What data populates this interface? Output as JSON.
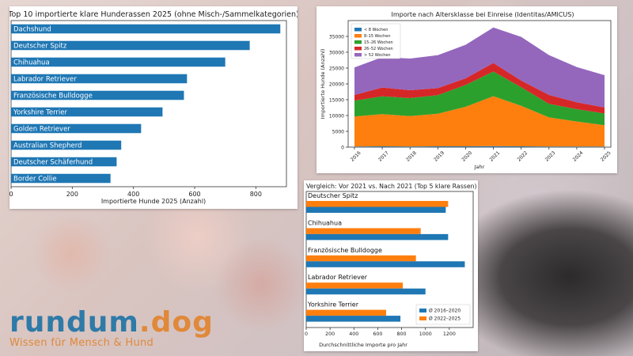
{
  "colors": {
    "blue": "#1f77b4",
    "orange": "#ff7f0e",
    "green": "#2ca02c",
    "red": "#d62728",
    "purple": "#9467bd"
  },
  "logo": {
    "name_part1": "rundum",
    "name_part2": ".dog",
    "tagline": "Wissen für Mensch & Hund"
  },
  "chart_data": [
    {
      "type": "bar",
      "orientation": "horizontal",
      "title": "Top 10 importierte klare Hunderassen 2025 (ohne Misch-/Sammelkategorien)",
      "xlabel": "Importierte Hunde 2025 (Anzahl)",
      "xlim": [
        0,
        900
      ],
      "xticks": [
        0,
        200,
        400,
        600,
        800
      ],
      "categories": [
        "Dachshund",
        "Deutscher Spitz",
        "Chihuahua",
        "Labrador Retriever",
        "Französische Bulldogge",
        "Yorkshire Terrier",
        "Golden Retriever",
        "Australian Shepherd",
        "Deutscher Schäferhund",
        "Border Collie"
      ],
      "values": [
        880,
        780,
        700,
        575,
        565,
        495,
        425,
        360,
        345,
        325
      ],
      "grid": false
    },
    {
      "type": "area",
      "stacked": true,
      "title": "Importe nach Altersklasse bei Einreise (Identitas/AMICUS)",
      "xlabel": "Jahr",
      "ylabel": "Importierte Hunde (Anzahl)",
      "ylim": [
        0,
        40000
      ],
      "yticks": [
        0,
        5000,
        10000,
        15000,
        20000,
        25000,
        30000,
        35000
      ],
      "x": [
        "2016",
        "2017",
        "2018",
        "2019",
        "2020",
        "2021",
        "2022",
        "2023",
        "2024",
        "2025"
      ],
      "legend_position": "top-left",
      "series": [
        {
          "name": "< 8 Wochen",
          "values": [
            200,
            250,
            200,
            250,
            250,
            300,
            250,
            200,
            200,
            150
          ]
        },
        {
          "name": "8–15 Wochen",
          "values": [
            9500,
            10200,
            9600,
            10300,
            12500,
            15800,
            12800,
            9200,
            7900,
            6800
          ]
        },
        {
          "name": "15–26 Wochen",
          "values": [
            5000,
            5600,
            5700,
            5900,
            6900,
            7800,
            5900,
            4300,
            3900,
            3700
          ]
        },
        {
          "name": "26–52 Wochen",
          "values": [
            1800,
            2800,
            2500,
            2200,
            2100,
            2700,
            2100,
            2800,
            2200,
            1900
          ]
        },
        {
          "name": "> 52 Wochen",
          "values": [
            8700,
            9600,
            10000,
            10400,
            10600,
            11200,
            13800,
            12600,
            11100,
            10200
          ]
        }
      ]
    },
    {
      "type": "bar",
      "orientation": "horizontal",
      "title": "Vergleich: Vor 2021 vs. Nach 2021 (Top 5 klare Rassen)",
      "xlabel": "Durchschnittliche Importe pro Jahr",
      "xlim": [
        0,
        1400
      ],
      "xticks": [
        0,
        200,
        400,
        600,
        800,
        1000,
        1200
      ],
      "categories": [
        "Deutscher Spitz",
        "Chihuahua",
        "Französische Bulldogge",
        "Labrador Retriever",
        "Yorkshire Terrier"
      ],
      "legend_position": "bottom-right",
      "series": [
        {
          "name": "Ø 2016–2020",
          "values": [
            1170,
            1190,
            1330,
            1000,
            790
          ]
        },
        {
          "name": "Ø 2022–2025",
          "values": [
            1190,
            960,
            920,
            810,
            670
          ]
        }
      ]
    }
  ]
}
